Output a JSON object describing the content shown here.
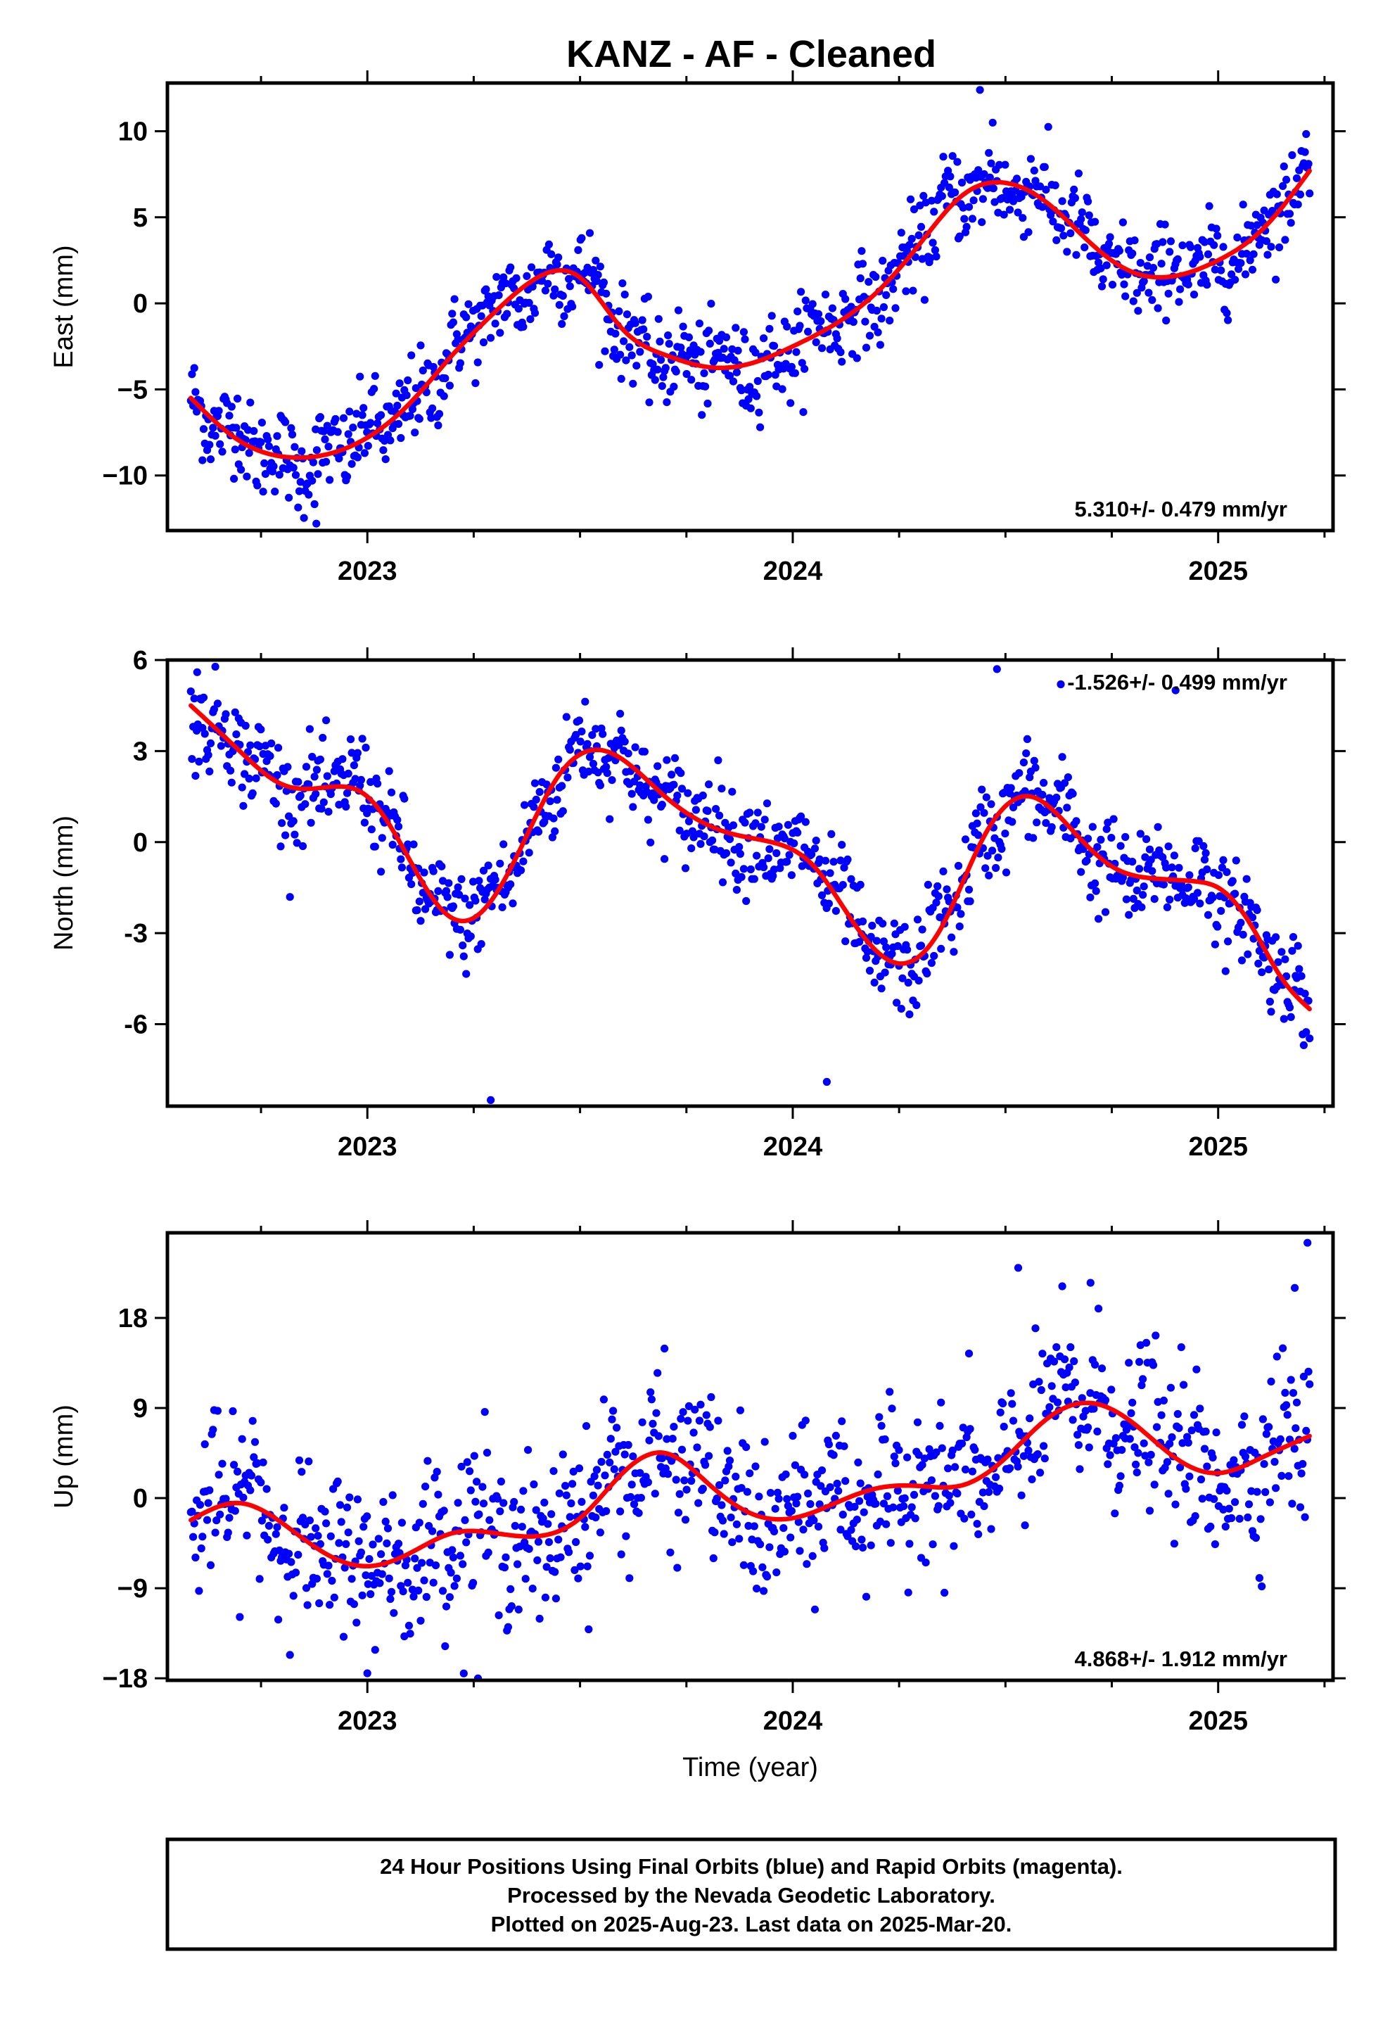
{
  "figure_title": "KANZ  - AF - Cleaned",
  "colors": {
    "final_orbit_points": "#0000ff",
    "model_curve": "#ff0000",
    "frame": "#000000"
  },
  "footer": {
    "line1": "24 Hour Positions Using Final Orbits (blue) and Rapid Orbits (magenta).",
    "line2": "Processed by the Nevada Geodetic Laboratory.",
    "line3": "Plotted on 2025-Aug-23. Last data on 2025-Mar-20."
  },
  "chart_data": [
    {
      "type": "scatter",
      "component": "east",
      "title": "",
      "xlabel": "",
      "ylabel": "East (mm)",
      "xlim": [
        2022.53,
        2025.27
      ],
      "ylim": [
        -13.2,
        12.8
      ],
      "x_ticks": [
        2023,
        2024,
        2025
      ],
      "x_minor_step": 0.25,
      "y_ticks": [
        -10,
        -5,
        0,
        5,
        10
      ],
      "y_tick_labels": [
        "−10",
        "−5",
        "0",
        "5",
        "10"
      ],
      "rate_text": "5.310+/- 0.479 mm/yr",
      "rate_position": "bottom-right",
      "series": [
        {
          "role": "daily_positions",
          "marker": "dot",
          "x_range": [
            2022.585,
            2025.215
          ],
          "approx_daily_count": 960,
          "scatter_sd_mm": 1.5,
          "outliers": [
            [
              2022.88,
              -12.8
            ],
            [
              2024.44,
              12.4
            ],
            [
              2024.47,
              10.5
            ]
          ]
        },
        {
          "role": "model_fit",
          "curve": "smooth",
          "x": [
            2022.585,
            2022.7,
            2022.8,
            2022.9,
            2023.0,
            2023.1,
            2023.2,
            2023.3,
            2023.4,
            2023.5,
            2023.6,
            2023.7,
            2023.8,
            2023.9,
            2024.0,
            2024.1,
            2024.2,
            2024.3,
            2024.4,
            2024.5,
            2024.6,
            2024.7,
            2024.8,
            2024.9,
            2025.0,
            2025.1,
            2025.215
          ],
          "y": [
            -5.5,
            -8.0,
            -8.9,
            -8.8,
            -7.8,
            -5.8,
            -3.0,
            -0.5,
            1.5,
            1.5,
            -1.5,
            -3.0,
            -3.7,
            -3.5,
            -2.5,
            -1.2,
            0.7,
            3.5,
            6.3,
            7.0,
            5.8,
            3.5,
            1.8,
            1.6,
            2.5,
            4.2,
            7.7
          ]
        }
      ]
    },
    {
      "type": "scatter",
      "component": "north",
      "title": "",
      "xlabel": "",
      "ylabel": "North (mm)",
      "xlim": [
        2022.53,
        2025.27
      ],
      "ylim": [
        -8.7,
        6.0
      ],
      "x_ticks": [
        2023,
        2024,
        2025
      ],
      "x_minor_step": 0.25,
      "y_ticks": [
        -6,
        -3,
        0,
        3,
        6
      ],
      "y_tick_labels": [
        "-6",
        "-3",
        "0",
        "3",
        "6"
      ],
      "rate_text": "-1.526+/- 0.499 mm/yr",
      "rate_position": "top-right",
      "series": [
        {
          "role": "daily_positions",
          "marker": "dot",
          "x_range": [
            2022.585,
            2025.215
          ],
          "approx_daily_count": 960,
          "scatter_sd_mm": 0.9,
          "outliers": [
            [
              2022.6,
              5.6
            ],
            [
              2023.29,
              -8.5
            ],
            [
              2024.08,
              -7.9
            ],
            [
              2024.48,
              5.7
            ],
            [
              2024.63,
              5.2
            ],
            [
              2024.9,
              5.0
            ]
          ]
        },
        {
          "role": "model_fit",
          "curve": "smooth",
          "x": [
            2022.585,
            2022.7,
            2022.8,
            2022.9,
            2023.0,
            2023.1,
            2023.18,
            2023.25,
            2023.35,
            2023.45,
            2023.56,
            2023.7,
            2023.85,
            2023.95,
            2024.05,
            2024.15,
            2024.25,
            2024.35,
            2024.45,
            2024.56,
            2024.65,
            2024.75,
            2024.85,
            2024.95,
            2025.0,
            2025.08,
            2025.15,
            2025.215
          ],
          "y": [
            4.5,
            3.0,
            1.9,
            1.8,
            1.5,
            -0.6,
            -2.3,
            -2.5,
            -0.5,
            2.2,
            3.0,
            1.5,
            0.3,
            0.0,
            -0.8,
            -2.8,
            -4.0,
            -2.8,
            0.2,
            1.5,
            0.5,
            -0.8,
            -1.2,
            -1.3,
            -1.5,
            -2.8,
            -4.5,
            -5.5
          ]
        }
      ]
    },
    {
      "type": "scatter",
      "component": "up",
      "title": "",
      "xlabel": "Time (year)",
      "ylabel": "Up (mm)",
      "xlim": [
        2022.53,
        2025.27
      ],
      "ylim": [
        -18.2,
        26.5
      ],
      "x_ticks": [
        2023,
        2024,
        2025
      ],
      "x_minor_step": 0.25,
      "y_ticks": [
        -18,
        -9,
        0,
        9,
        18
      ],
      "y_tick_labels": [
        "−18",
        "−9",
        "0",
        "9",
        "18"
      ],
      "rate_text": "4.868+/- 1.912 mm/yr",
      "rate_position": "bottom-right",
      "series": [
        {
          "role": "daily_positions",
          "marker": "dot",
          "x_range": [
            2022.585,
            2025.215
          ],
          "approx_daily_count": 960,
          "scatter_sd_mm": 4.5,
          "outliers": [
            [
              2024.53,
              23.0
            ],
            [
              2024.7,
              21.5
            ],
            [
              2025.18,
              21.0
            ],
            [
              2025.21,
              25.5
            ],
            [
              2023.26,
              -18.0
            ],
            [
              2023.0,
              -17.5
            ]
          ]
        },
        {
          "role": "model_fit",
          "curve": "smooth",
          "x": [
            2022.585,
            2022.7,
            2022.8,
            2022.9,
            2023.0,
            2023.1,
            2023.2,
            2023.3,
            2023.4,
            2023.5,
            2023.6,
            2023.7,
            2023.8,
            2023.9,
            2024.0,
            2024.1,
            2024.2,
            2024.3,
            2024.4,
            2024.5,
            2024.6,
            2024.7,
            2024.8,
            2024.9,
            2025.0,
            2025.1,
            2025.215
          ],
          "y": [
            -2.2,
            -0.5,
            -2.5,
            -5.5,
            -6.8,
            -5.5,
            -3.5,
            -3.5,
            -3.8,
            -2.0,
            2.5,
            4.5,
            1.5,
            -1.5,
            -2.0,
            -0.5,
            1.0,
            1.2,
            1.3,
            4.0,
            8.0,
            9.5,
            7.5,
            4.0,
            2.5,
            4.0,
            6.2
          ]
        }
      ]
    }
  ]
}
